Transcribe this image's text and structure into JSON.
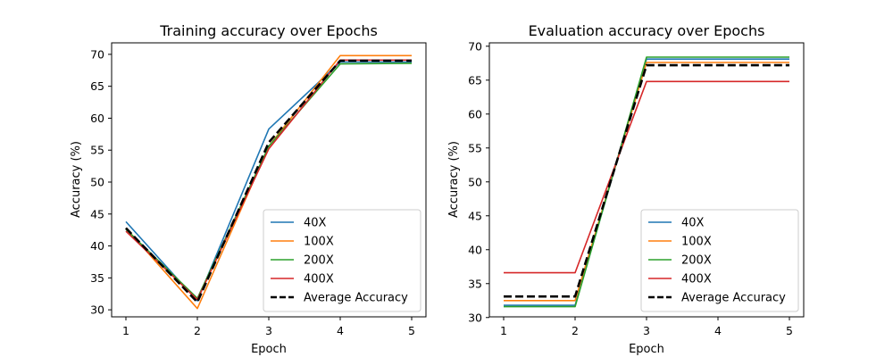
{
  "chart_data": [
    {
      "type": "line",
      "title": "Training accuracy over Epochs",
      "xlabel": "Epoch",
      "ylabel": "Accuracy (%)",
      "x": [
        1,
        2,
        3,
        4,
        5
      ],
      "xticks": [
        "1",
        "2",
        "3",
        "4",
        "5"
      ],
      "xlim": [
        0.8,
        5.2
      ],
      "yticks": [
        "30",
        "35",
        "40",
        "45",
        "50",
        "55",
        "60",
        "65",
        "70"
      ],
      "ylim": [
        28.9,
        71.8
      ],
      "grid": false,
      "legend_position": "lower-right",
      "series": [
        {
          "name": "40X",
          "values": [
            43.8,
            31.4,
            58.3,
            68.8,
            68.8
          ],
          "color": "#1f77b4",
          "dashed": false
        },
        {
          "name": "100X",
          "values": [
            42.8,
            30.2,
            55.6,
            69.8,
            69.8
          ],
          "color": "#ff7f0e",
          "dashed": false
        },
        {
          "name": "200X",
          "values": [
            42.6,
            31.8,
            55.6,
            68.5,
            68.6
          ],
          "color": "#2ca02c",
          "dashed": false
        },
        {
          "name": "400X",
          "values": [
            42.3,
            31.6,
            55.2,
            69.1,
            69.1
          ],
          "color": "#d62728",
          "dashed": false
        },
        {
          "name": "Average Accuracy",
          "values": [
            42.8,
            31.2,
            56.2,
            69.0,
            69.0
          ],
          "color": "#000000",
          "dashed": true
        }
      ]
    },
    {
      "type": "line",
      "title": "Evaluation accuracy over Epochs",
      "xlabel": "Epoch",
      "ylabel": "Accuracy (%)",
      "x": [
        1,
        2,
        3,
        4,
        5
      ],
      "xticks": [
        "1",
        "2",
        "3",
        "4",
        "5"
      ],
      "xlim": [
        0.8,
        5.2
      ],
      "yticks": [
        "30",
        "35",
        "40",
        "45",
        "50",
        "55",
        "60",
        "65",
        "70"
      ],
      "ylim": [
        30.1,
        70.5
      ],
      "grid": false,
      "legend_position": "lower-right",
      "series": [
        {
          "name": "40X",
          "values": [
            31.8,
            31.8,
            68.1,
            68.1,
            68.1
          ],
          "color": "#1f77b4",
          "dashed": false
        },
        {
          "name": "100X",
          "values": [
            32.5,
            32.5,
            67.6,
            67.6,
            67.6
          ],
          "color": "#ff7f0e",
          "dashed": false
        },
        {
          "name": "200X",
          "values": [
            31.6,
            31.6,
            68.4,
            68.4,
            68.4
          ],
          "color": "#2ca02c",
          "dashed": false
        },
        {
          "name": "400X",
          "values": [
            36.6,
            36.6,
            64.8,
            64.8,
            64.8
          ],
          "color": "#d62728",
          "dashed": false
        },
        {
          "name": "Average Accuracy",
          "values": [
            33.1,
            33.1,
            67.2,
            67.2,
            67.2
          ],
          "color": "#000000",
          "dashed": true
        }
      ]
    }
  ]
}
